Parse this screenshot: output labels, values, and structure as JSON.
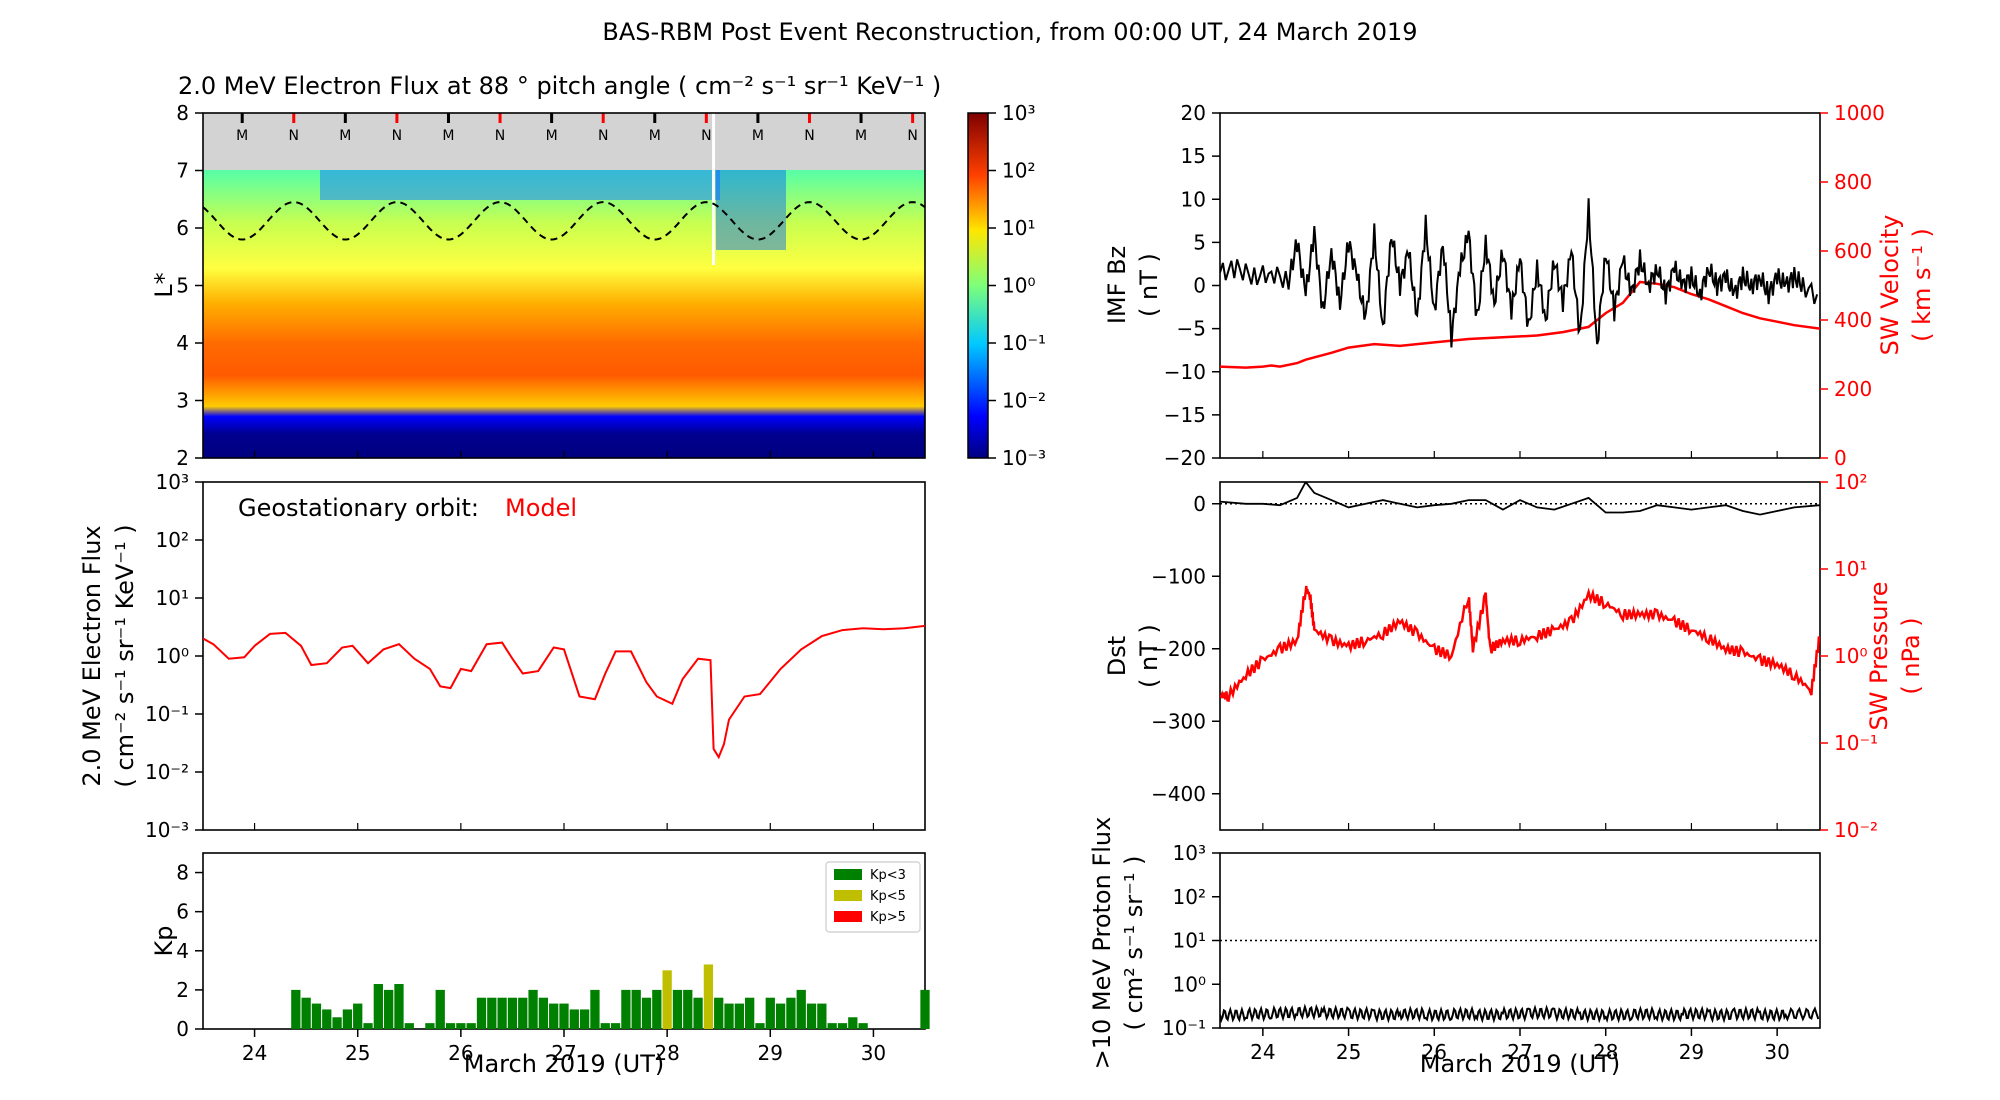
{
  "figure": {
    "title": "BAS-RBM Post Event Reconstruction, from 00:00 UT, 24 March 2019",
    "x_axis_label": "March 2019 (UT)",
    "x_tick_labels": [
      "24",
      "25",
      "26",
      "27",
      "28",
      "29",
      "30"
    ]
  },
  "chart_data": [
    {
      "id": "spectrogram",
      "type": "heatmap",
      "title": "2.0 MeV Electron Flux at 88 ° pitch angle ( cm⁻² s⁻¹ sr⁻¹ KeV⁻¹ )",
      "ylabel": "L*",
      "xlim": [
        23.5,
        30.5
      ],
      "ylim": [
        2,
        8
      ],
      "y_tick_labels": [
        "2",
        "3",
        "4",
        "5",
        "6",
        "7",
        "8"
      ],
      "colorbar": {
        "scale": "log",
        "range": [
          0.001,
          1000
        ],
        "tick_labels": [
          "10⁻³",
          "10⁻²",
          "10⁻¹",
          "10⁰",
          "10¹",
          "10²",
          "10³"
        ]
      },
      "markers": [
        {
          "day": 23.88,
          "label": "M"
        },
        {
          "day": 24.38,
          "label": "N"
        },
        {
          "day": 24.88,
          "label": "M"
        },
        {
          "day": 25.38,
          "label": "N"
        },
        {
          "day": 25.88,
          "label": "M"
        },
        {
          "day": 26.38,
          "label": "N"
        },
        {
          "day": 26.88,
          "label": "M"
        },
        {
          "day": 27.38,
          "label": "N"
        },
        {
          "day": 27.88,
          "label": "M"
        },
        {
          "day": 28.38,
          "label": "N"
        },
        {
          "day": 28.88,
          "label": "M"
        },
        {
          "day": 29.38,
          "label": "N"
        },
        {
          "day": 29.88,
          "label": "M"
        },
        {
          "day": 30.38,
          "label": "N"
        }
      ],
      "geostationary_L_range": [
        5.8,
        6.45
      ],
      "outer_boundary_L": 7.0,
      "event_day": 28.45
    },
    {
      "id": "geo-flux",
      "type": "line",
      "annotation": "Geostationary orbit:",
      "series_label": "Model",
      "ylabel": [
        "2.0 MeV Electron Flux",
        "( cm⁻² s⁻¹ sr⁻¹ KeV⁻¹ )"
      ],
      "yscale": "log",
      "ylim": [
        0.001,
        1000
      ],
      "y_tick_labels": [
        "10⁻³",
        "10⁻²",
        "10⁻¹",
        "10⁰",
        "10¹",
        "10²",
        "10³"
      ],
      "color": "#ff0000",
      "x": [
        23.5,
        23.6,
        23.75,
        23.9,
        24.0,
        24.15,
        24.3,
        24.45,
        24.55,
        24.7,
        24.85,
        24.95,
        25.1,
        25.25,
        25.4,
        25.55,
        25.7,
        25.8,
        25.9,
        26.0,
        26.1,
        26.25,
        26.4,
        26.5,
        26.6,
        26.75,
        26.9,
        27.0,
        27.15,
        27.3,
        27.4,
        27.5,
        27.65,
        27.8,
        27.9,
        28.05,
        28.15,
        28.3,
        28.42,
        28.45,
        28.5,
        28.55,
        28.6,
        28.75,
        28.9,
        29.1,
        29.3,
        29.5,
        29.7,
        29.9,
        30.1,
        30.3,
        30.5
      ],
      "y": [
        2.0,
        1.6,
        0.9,
        0.95,
        1.5,
        2.4,
        2.5,
        1.5,
        0.7,
        0.75,
        1.4,
        1.5,
        0.75,
        1.3,
        1.6,
        0.9,
        0.6,
        0.3,
        0.28,
        0.6,
        0.55,
        1.6,
        1.7,
        0.9,
        0.5,
        0.55,
        1.4,
        1.3,
        0.2,
        0.18,
        0.5,
        1.2,
        1.2,
        0.35,
        0.2,
        0.15,
        0.4,
        0.9,
        0.85,
        0.025,
        0.018,
        0.03,
        0.08,
        0.2,
        0.22,
        0.6,
        1.3,
        2.2,
        2.8,
        3.0,
        2.9,
        3.0,
        3.3
      ]
    },
    {
      "id": "kp",
      "type": "bar",
      "ylabel": "Kp",
      "ylim": [
        0,
        9
      ],
      "y_tick_labels": [
        "0",
        "2",
        "4",
        "6",
        "8"
      ],
      "bar_width_days": 0.09,
      "legend": {
        "entries": [
          "Kp<3",
          "Kp<5",
          "Kp>5"
        ],
        "colors": [
          "#008000",
          "#bfbf00",
          "#ff0000"
        ],
        "position": "top-right"
      },
      "x": [
        24.4,
        24.5,
        24.6,
        24.7,
        24.8,
        24.9,
        25.0,
        25.1,
        25.2,
        25.3,
        25.4,
        25.5,
        25.6,
        25.7,
        25.8,
        25.9,
        26.0,
        26.1,
        26.2,
        26.3,
        26.4,
        26.5,
        26.6,
        26.7,
        26.8,
        26.9,
        27.0,
        27.1,
        27.2,
        27.3,
        27.4,
        27.5,
        27.6,
        27.7,
        27.8,
        27.9,
        28.0,
        28.1,
        28.2,
        28.3,
        28.4,
        28.5,
        28.6,
        28.7,
        28.8,
        28.9,
        29.0,
        29.1,
        29.2,
        29.3,
        29.4,
        29.5,
        29.6,
        29.7,
        29.8,
        29.9,
        30.0,
        30.1,
        30.2,
        30.3,
        30.4,
        30.5
      ],
      "values": [
        2.0,
        1.6,
        1.3,
        1.0,
        0.6,
        1.0,
        1.3,
        0.3,
        2.3,
        2.0,
        2.3,
        0.3,
        0.0,
        0.3,
        2.0,
        0.3,
        0.3,
        0.3,
        1.6,
        1.6,
        1.6,
        1.6,
        1.6,
        2.0,
        1.6,
        1.3,
        1.3,
        1.0,
        1.0,
        2.0,
        0.3,
        0.3,
        2.0,
        2.0,
        1.6,
        2.0,
        3.0,
        2.0,
        2.0,
        1.6,
        3.3,
        1.6,
        1.3,
        1.3,
        1.6,
        0.3,
        1.6,
        1.3,
        1.6,
        2.0,
        1.3,
        1.3,
        0.3,
        0.3,
        0.6,
        0.3,
        0.0,
        0.0,
        0.0,
        0.0,
        0.0,
        2.0
      ],
      "colors": [
        "#008000",
        "#008000",
        "#008000",
        "#008000",
        "#008000",
        "#008000",
        "#008000",
        "#008000",
        "#008000",
        "#008000",
        "#008000",
        "#008000",
        "#008000",
        "#008000",
        "#008000",
        "#008000",
        "#008000",
        "#008000",
        "#008000",
        "#008000",
        "#008000",
        "#008000",
        "#008000",
        "#008000",
        "#008000",
        "#008000",
        "#008000",
        "#008000",
        "#008000",
        "#008000",
        "#008000",
        "#008000",
        "#008000",
        "#008000",
        "#008000",
        "#008000",
        "#bfbf00",
        "#008000",
        "#008000",
        "#008000",
        "#bfbf00",
        "#008000",
        "#008000",
        "#008000",
        "#008000",
        "#008000",
        "#008000",
        "#008000",
        "#008000",
        "#008000",
        "#008000",
        "#008000",
        "#008000",
        "#008000",
        "#008000",
        "#008000",
        "#008000",
        "#008000",
        "#008000",
        "#008000",
        "#008000",
        "#008000"
      ]
    },
    {
      "id": "imf-sw",
      "type": "line",
      "ylabel": [
        "IMF Bz",
        "( nT )"
      ],
      "ylim": [
        -20,
        20
      ],
      "y_tick_labels": [
        "−20",
        "−15",
        "−10",
        "−5",
        "0",
        "5",
        "10",
        "15",
        "20"
      ],
      "y2label": [
        "SW Velocity",
        "( km s⁻¹ )"
      ],
      "y2lim": [
        0,
        1000
      ],
      "y2_tick_labels": [
        "0",
        "200",
        "400",
        "600",
        "800",
        "1000"
      ],
      "series": [
        {
          "name": "IMF Bz",
          "axis": "left",
          "color": "#000000",
          "x": [
            23.5,
            23.7,
            23.9,
            24.1,
            24.3,
            24.4,
            24.5,
            24.6,
            24.7,
            24.8,
            24.9,
            25.0,
            25.1,
            25.2,
            25.3,
            25.4,
            25.5,
            25.6,
            25.7,
            25.8,
            25.9,
            26.0,
            26.1,
            26.2,
            26.3,
            26.4,
            26.5,
            26.6,
            26.7,
            26.8,
            26.9,
            27.0,
            27.1,
            27.2,
            27.3,
            27.4,
            27.5,
            27.6,
            27.7,
            27.8,
            27.9,
            28.0,
            28.1,
            28.2,
            28.3,
            28.4,
            28.5,
            28.6,
            28.7,
            28.8,
            28.9,
            29.0,
            29.1,
            29.2,
            29.3,
            29.4,
            29.5,
            29.6,
            29.7,
            29.8,
            29.9,
            30.0,
            30.1,
            30.2,
            30.3,
            30.5
          ],
          "y": [
            1.5,
            2,
            1,
            1.5,
            0.5,
            5,
            -1,
            6,
            -3,
            4,
            -2,
            5,
            1,
            -4,
            6,
            -5,
            6,
            0,
            4,
            -4,
            7,
            -3,
            5,
            -6,
            2,
            6,
            -4,
            5,
            -2,
            4,
            -3,
            3,
            -5,
            2,
            -4,
            3,
            -2,
            4,
            -6,
            9,
            -7,
            4,
            -3,
            3,
            -1,
            3,
            0,
            2,
            -1,
            2,
            0,
            1,
            -1,
            2,
            0,
            1,
            -1,
            1,
            0,
            1,
            -1,
            1,
            0,
            1,
            0,
            -1.5
          ]
        },
        {
          "name": "SW Velocity",
          "axis": "right",
          "color": "#ff0000",
          "x": [
            23.5,
            23.8,
            24.0,
            24.1,
            24.2,
            24.4,
            24.5,
            24.8,
            25.0,
            25.3,
            25.6,
            26.0,
            26.4,
            26.8,
            27.2,
            27.5,
            27.8,
            28.0,
            28.2,
            28.4,
            28.6,
            28.8,
            29.0,
            29.2,
            29.4,
            29.6,
            29.8,
            30.0,
            30.2,
            30.5
          ],
          "y": [
            265,
            262,
            265,
            268,
            265,
            275,
            285,
            305,
            320,
            330,
            325,
            335,
            345,
            350,
            355,
            365,
            380,
            420,
            450,
            510,
            505,
            495,
            475,
            460,
            440,
            420,
            405,
            395,
            385,
            375
          ]
        }
      ]
    },
    {
      "id": "dst-pressure",
      "type": "line",
      "ylabel": [
        "Dst",
        "( nT )"
      ],
      "ylim": [
        -450,
        30
      ],
      "y_tick_labels": [
        "0",
        "−100",
        "−200",
        "−300",
        "−400"
      ],
      "y2label": [
        "SW Pressure",
        "( nPa )"
      ],
      "y2scale": "log",
      "y2lim": [
        0.01,
        100
      ],
      "y2_tick_labels": [
        "10⁻²",
        "10⁻¹",
        "10⁰",
        "10¹",
        "10²"
      ],
      "reference_line_value": 0,
      "series": [
        {
          "name": "Dst",
          "axis": "left",
          "color": "#000000",
          "x": [
            23.5,
            23.8,
            24.0,
            24.2,
            24.4,
            24.5,
            24.6,
            24.8,
            25.0,
            25.2,
            25.4,
            25.6,
            25.8,
            26.0,
            26.2,
            26.4,
            26.6,
            26.8,
            27.0,
            27.2,
            27.4,
            27.6,
            27.8,
            28.0,
            28.2,
            28.4,
            28.6,
            28.8,
            29.0,
            29.2,
            29.4,
            29.6,
            29.8,
            30.0,
            30.2,
            30.5
          ],
          "y": [
            3,
            0,
            0,
            -2,
            8,
            30,
            15,
            5,
            -5,
            0,
            5,
            0,
            -5,
            -2,
            0,
            5,
            5,
            -8,
            5,
            -5,
            -8,
            0,
            8,
            -12,
            -12,
            -10,
            -2,
            -5,
            -8,
            -5,
            -2,
            -10,
            -15,
            -10,
            -5,
            -2
          ]
        },
        {
          "name": "SW Pressure",
          "axis": "right",
          "color": "#ff0000",
          "x": [
            23.5,
            23.6,
            23.8,
            24.0,
            24.2,
            24.4,
            24.5,
            24.55,
            24.6,
            24.8,
            25.0,
            25.2,
            25.4,
            25.6,
            25.8,
            26.0,
            26.2,
            26.4,
            26.45,
            26.6,
            26.65,
            26.8,
            27.0,
            27.2,
            27.4,
            27.6,
            27.8,
            28.0,
            28.2,
            28.4,
            28.6,
            28.8,
            29.0,
            29.2,
            29.4,
            29.6,
            29.8,
            30.0,
            30.2,
            30.4,
            30.5
          ],
          "y": [
            0.35,
            0.35,
            0.6,
            0.9,
            1.2,
            1.5,
            6.0,
            5.0,
            2.0,
            1.5,
            1.3,
            1.5,
            1.8,
            2.5,
            1.8,
            1.2,
            1.0,
            5.0,
            1.2,
            5.0,
            1.2,
            1.5,
            1.5,
            1.7,
            2.0,
            2.5,
            5.0,
            4.0,
            3.0,
            3.0,
            3.0,
            2.5,
            2.0,
            1.6,
            1.2,
            1.1,
            0.9,
            0.8,
            0.6,
            0.4,
            1.8
          ]
        }
      ]
    },
    {
      "id": "proton-flux",
      "type": "line",
      "ylabel": [
        ">10 MeV Proton Flux",
        "( cm² s⁻¹ sr⁻¹ )"
      ],
      "yscale": "log",
      "ylim": [
        0.1,
        1000
      ],
      "y_tick_labels": [
        "10⁻¹",
        "10⁰",
        "10¹",
        "10²",
        "10³"
      ],
      "threshold": 10,
      "series": [
        {
          "name": "Proton Flux",
          "color": "#000000",
          "x": [
            23.5,
            23.8,
            24.1,
            24.4,
            24.7,
            25.0,
            25.3,
            25.6,
            25.9,
            26.2,
            26.5,
            26.8,
            27.1,
            27.4,
            27.7,
            28.0,
            28.3,
            28.6,
            28.9,
            29.2,
            29.5,
            29.8,
            30.1,
            30.5
          ],
          "y": [
            0.2,
            0.21,
            0.22,
            0.23,
            0.22,
            0.21,
            0.2,
            0.21,
            0.2,
            0.21,
            0.2,
            0.21,
            0.22,
            0.21,
            0.2,
            0.2,
            0.21,
            0.2,
            0.21,
            0.2,
            0.21,
            0.2,
            0.21,
            0.2
          ]
        }
      ]
    }
  ]
}
